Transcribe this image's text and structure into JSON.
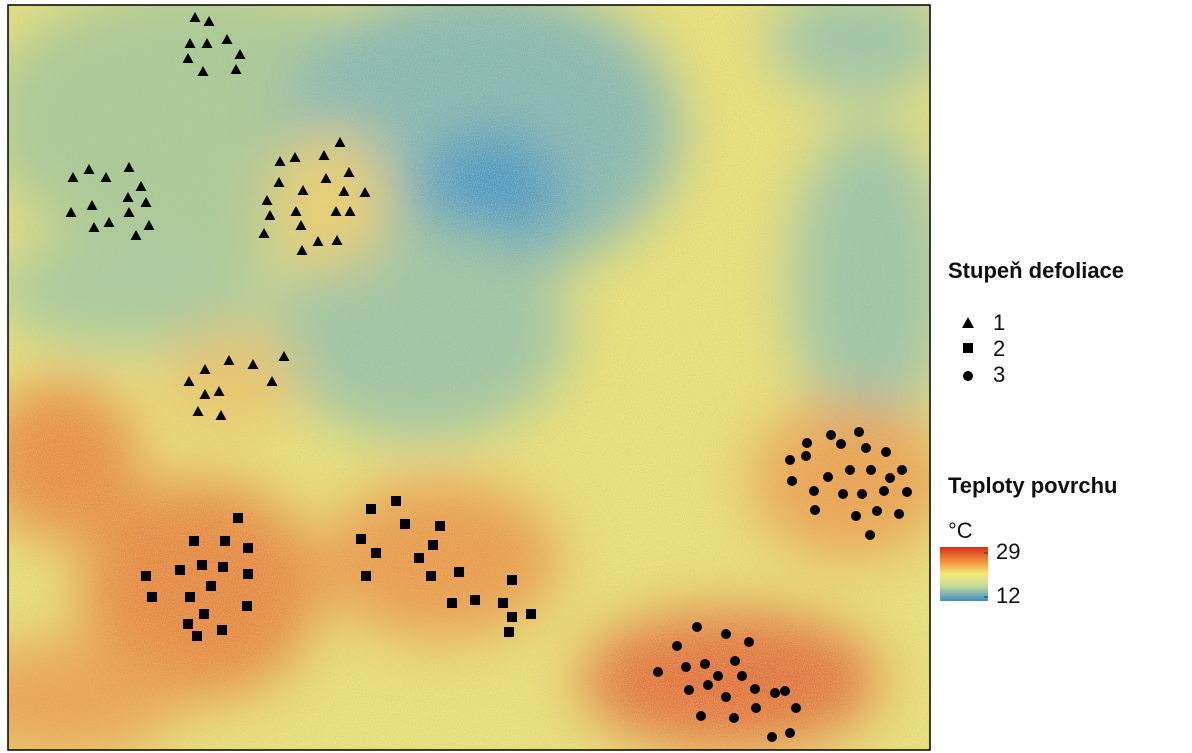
{
  "legend_points": {
    "title": "Stupeň defoliace",
    "items": [
      "1",
      "2",
      "3"
    ]
  },
  "legend_temperature": {
    "title": "Teploty povrchu",
    "unit": "°C",
    "ticks": [
      29,
      12
    ]
  }
}
